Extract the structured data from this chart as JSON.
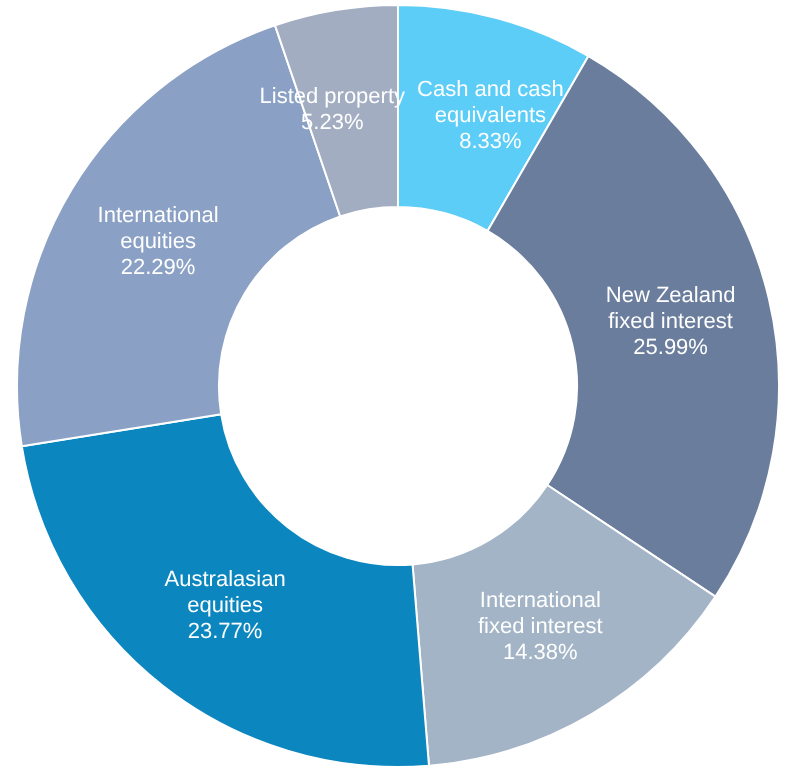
{
  "chart_data": {
    "type": "donut",
    "categories": [
      "Cash and cash equivalents",
      "New Zealand fixed interest",
      "International fixed interest",
      "Australasian equities",
      "International equities",
      "Listed property"
    ],
    "values": [
      8.33,
      25.99,
      14.38,
      23.77,
      22.29,
      5.23
    ],
    "colors": [
      "#5ccdf7",
      "#6a7d9c",
      "#a2b4c6",
      "#0b86bf",
      "#8aa0c4",
      "#a2adc2"
    ],
    "value_labels": [
      "8.33%",
      "25.99%",
      "14.38%",
      "23.77%",
      "22.29%",
      "5.23%"
    ],
    "legend": false
  }
}
